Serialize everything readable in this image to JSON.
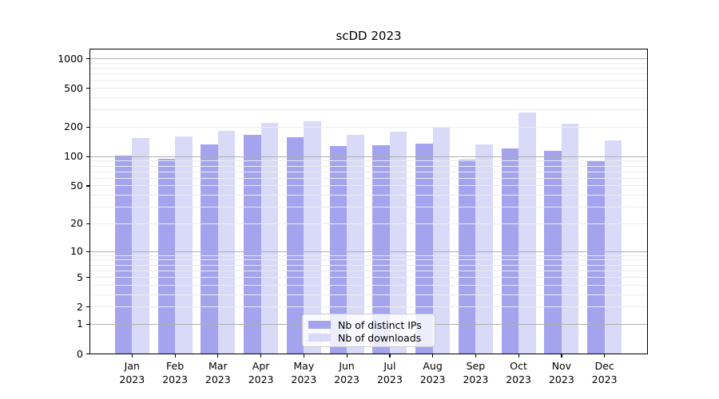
{
  "title": "scDD 2023",
  "chart_data": {
    "type": "bar",
    "title": "scDD 2023",
    "categories": [
      "Jan",
      "Feb",
      "Mar",
      "Apr",
      "May",
      "Jun",
      "Jul",
      "Aug",
      "Sep",
      "Oct",
      "Nov",
      "Dec"
    ],
    "year_label": "2023",
    "series": [
      {
        "name": "Nb of distinct IPs",
        "color": "#a3a3ee",
        "values": [
          104,
          96,
          136,
          168,
          160,
          129,
          132,
          138,
          95,
          122,
          116,
          93
        ]
      },
      {
        "name": "Nb of downloads",
        "color": "#d9d9f8",
        "values": [
          156,
          164,
          185,
          224,
          232,
          170,
          181,
          204,
          136,
          285,
          221,
          148
        ]
      }
    ],
    "y_axis": {
      "ticks": [
        0,
        1,
        2,
        5,
        10,
        20,
        50,
        100,
        200,
        500,
        1000
      ],
      "scale": "log10(1+x)",
      "top_value": 1280
    },
    "x_axis": {
      "tick_label_lines": 2
    },
    "grid": {
      "major_color": "#b0b0b0",
      "minor_color": "#ececec",
      "drawn_over_bars": true
    },
    "legend_position": "lower center",
    "background_color": "#ffffff"
  }
}
